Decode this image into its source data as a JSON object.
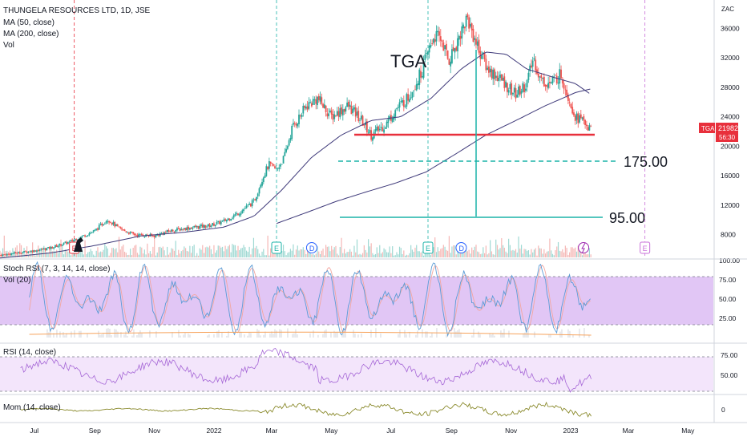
{
  "chart_data": {
    "type": "line",
    "symbol": "TGA",
    "title": "THUNGELA RESOURCES LTD, 1D, JSE",
    "currency": "ZAC",
    "legend": [
      "MA (50, close)",
      "MA (200, close)",
      "Vol"
    ],
    "x_ticks": [
      "Jul",
      "Sep",
      "Nov",
      "2022",
      "Mar",
      "May",
      "Jul",
      "Sep",
      "Nov",
      "2023",
      "Mar",
      "May"
    ],
    "y_ticks": [
      "8000",
      "12000",
      "16000",
      "20000",
      "24000",
      "28000",
      "32000",
      "36000"
    ],
    "last_price": "21982",
    "countdown": "56:30",
    "annotations": {
      "watermark": "TGA",
      "target1": "175.00",
      "target2": "95.00"
    },
    "events": [
      {
        "type": "E",
        "x": "2021-08-25"
      },
      {
        "type": "E",
        "x": "2022-03-20"
      },
      {
        "type": "D",
        "x": "2022-04-25"
      },
      {
        "type": "E",
        "x": "2022-08-22"
      },
      {
        "type": "D",
        "x": "2022-09-25"
      },
      {
        "type": "E",
        "x": "2023-04-01"
      }
    ],
    "price": {
      "ylim": [
        5000,
        39000
      ],
      "xlim": [
        "2021-06-10",
        "2023-06-10"
      ],
      "anchors": [
        [
          "2021-06-10",
          5200
        ],
        [
          "2021-07-15",
          5800
        ],
        [
          "2021-08-01",
          6200
        ],
        [
          "2021-08-20",
          7000
        ],
        [
          "2021-09-15",
          8500
        ],
        [
          "2021-09-28",
          10100
        ],
        [
          "2021-10-10",
          8800
        ],
        [
          "2021-10-25",
          8000
        ],
        [
          "2021-11-15",
          7800
        ],
        [
          "2021-12-01",
          8500
        ],
        [
          "2021-12-20",
          8900
        ],
        [
          "2022-01-10",
          9200
        ],
        [
          "2022-01-25",
          9800
        ],
        [
          "2022-02-10",
          11000
        ],
        [
          "2022-02-25",
          12500
        ],
        [
          "2022-03-05",
          15500
        ],
        [
          "2022-03-12",
          17500
        ],
        [
          "2022-03-20",
          16800
        ],
        [
          "2022-03-28",
          18500
        ],
        [
          "2022-04-05",
          22500
        ],
        [
          "2022-04-20",
          25500
        ],
        [
          "2022-05-01",
          26500
        ],
        [
          "2022-05-15",
          24000
        ],
        [
          "2022-06-01",
          25500
        ],
        [
          "2022-06-15",
          23500
        ],
        [
          "2022-06-25",
          21500
        ],
        [
          "2022-07-10",
          23000
        ],
        [
          "2022-07-20",
          25000
        ],
        [
          "2022-08-01",
          26500
        ],
        [
          "2022-08-15",
          30000
        ],
        [
          "2022-08-28",
          35000
        ],
        [
          "2022-09-05",
          34500
        ],
        [
          "2022-09-12",
          31500
        ],
        [
          "2022-09-20",
          34000
        ],
        [
          "2022-10-01",
          37500
        ],
        [
          "2022-10-12",
          33500
        ],
        [
          "2022-10-22",
          30500
        ],
        [
          "2022-11-05",
          29000
        ],
        [
          "2022-11-20",
          27000
        ],
        [
          "2022-12-01",
          28500
        ],
        [
          "2022-12-08",
          32000
        ],
        [
          "2022-12-15",
          29000
        ],
        [
          "2022-12-25",
          28500
        ],
        [
          "2023-01-05",
          29800
        ],
        [
          "2023-01-12",
          27000
        ],
        [
          "2023-01-20",
          24000
        ],
        [
          "2023-01-28",
          23500
        ],
        [
          "2023-02-05",
          21982
        ]
      ],
      "ma50": [
        [
          "2021-06-10",
          4800
        ],
        [
          "2021-08-01",
          5500
        ],
        [
          "2021-09-15",
          6500
        ],
        [
          "2021-11-01",
          7800
        ],
        [
          "2021-12-15",
          8300
        ],
        [
          "2022-01-25",
          9000
        ],
        [
          "2022-02-25",
          10500
        ],
        [
          "2022-03-25",
          14000
        ],
        [
          "2022-04-25",
          18500
        ],
        [
          "2022-05-25",
          21500
        ],
        [
          "2022-06-25",
          23500
        ],
        [
          "2022-07-25",
          24000
        ],
        [
          "2022-08-25",
          26500
        ],
        [
          "2022-09-25",
          30500
        ],
        [
          "2022-10-20",
          32800
        ],
        [
          "2022-11-10",
          32500
        ],
        [
          "2022-12-01",
          30500
        ],
        [
          "2022-12-25",
          29500
        ],
        [
          "2023-01-20",
          28500
        ],
        [
          "2023-02-05",
          27000
        ]
      ],
      "ma200": [
        [
          "2022-03-20",
          9500
        ],
        [
          "2022-04-20",
          11000
        ],
        [
          "2022-05-20",
          12500
        ],
        [
          "2022-06-20",
          13800
        ],
        [
          "2022-07-20",
          15000
        ],
        [
          "2022-08-20",
          16500
        ],
        [
          "2022-09-20",
          19000
        ],
        [
          "2022-10-20",
          21500
        ],
        [
          "2022-11-20",
          23500
        ],
        [
          "2022-12-20",
          25500
        ],
        [
          "2023-01-20",
          27300
        ],
        [
          "2023-02-05",
          27800
        ]
      ]
    },
    "indicators": [
      {
        "name": "Stoch RSI (7, 3, 14, 14, close)",
        "subtitle": "Vol (20)",
        "ylim": [
          0,
          100
        ],
        "y_ticks": [
          "25.00",
          "50.00",
          "75.00",
          "100.00"
        ],
        "bands": [
          20,
          80
        ]
      },
      {
        "name": "RSI (14, close)",
        "ylim": [
          20,
          90
        ],
        "y_ticks": [
          "50.00",
          "75.00"
        ],
        "bands": [
          30,
          70
        ]
      },
      {
        "name": "Mom (14, close)",
        "y_ticks": [
          "0"
        ]
      }
    ]
  }
}
